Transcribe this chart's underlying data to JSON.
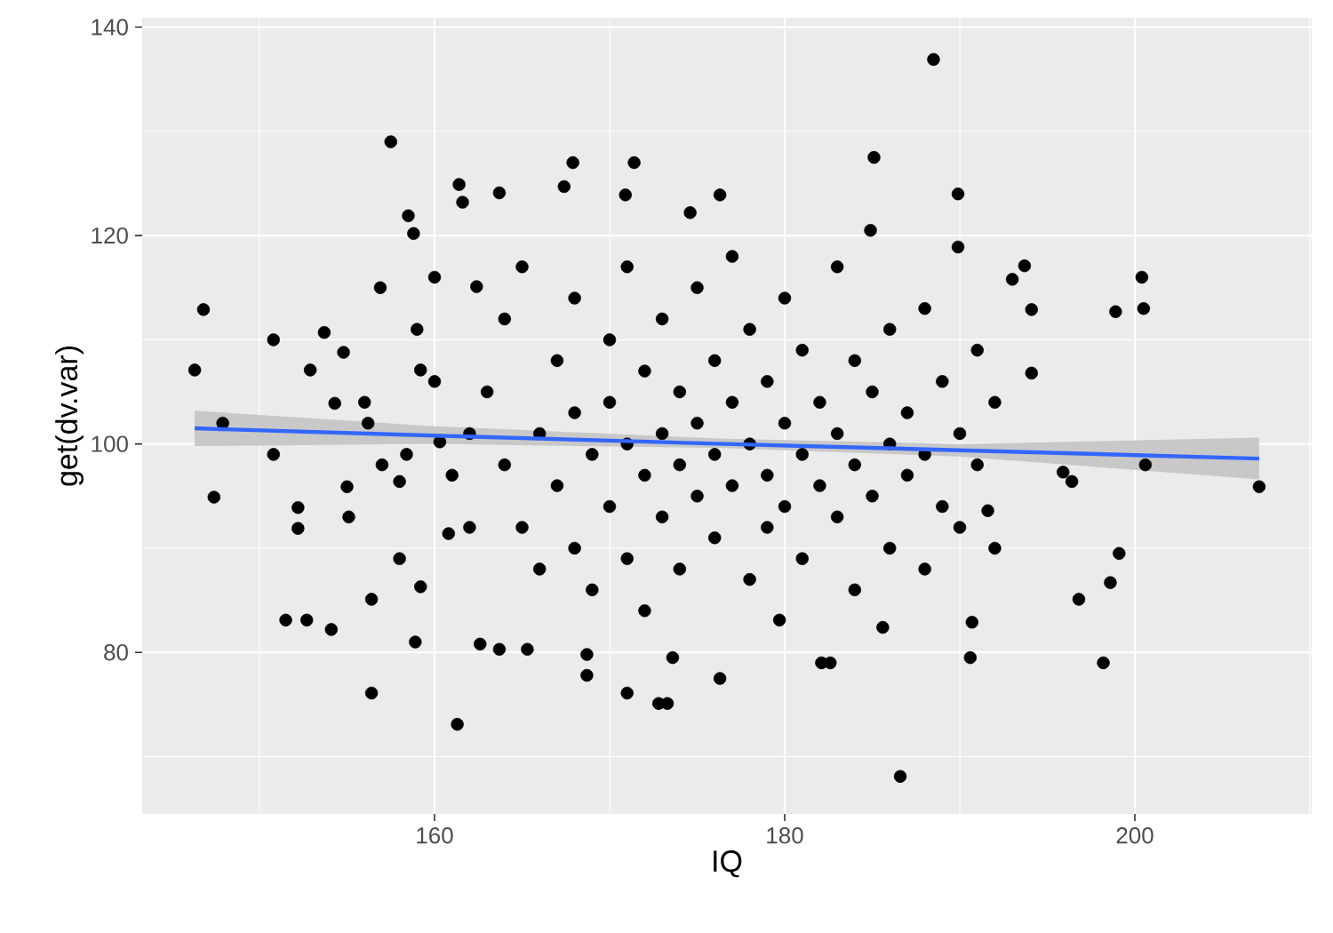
{
  "chart_data": {
    "type": "scatter",
    "xlabel": "IQ",
    "ylabel": "get(dv.var)",
    "xlim": [
      143.3,
      210.1
    ],
    "ylim": [
      64.5,
      140.9
    ],
    "xticks": [
      160,
      180,
      200
    ],
    "yticks": [
      80,
      100,
      120,
      140
    ],
    "grid": true,
    "series": [
      {
        "marker": "circle",
        "color": "#000000",
        "x": [
          146.3,
          146.8,
          147.4,
          147.9,
          150.8,
          150.8,
          151.5,
          152.7,
          152.2,
          152.2,
          152.9,
          153.7,
          154.1,
          154.3,
          154.8,
          155,
          155.1,
          156.2,
          156.4,
          156.4,
          156.9,
          157.5,
          158,
          158.4,
          158.5,
          158.8,
          159.2,
          159.2,
          158.9,
          160.3,
          160.8,
          161.3,
          161.4,
          161.6,
          162.6,
          162.4,
          163.7,
          163.7,
          165.3,
          167.4,
          167.9,
          168.7,
          168.7,
          170.9,
          171,
          171.4,
          172.8,
          173.3,
          173.6,
          174.6,
          176.3,
          176.3,
          179.7,
          182.1,
          182.6,
          186.6,
          185.6,
          184.9,
          185.1,
          188.5,
          189.9,
          189.9,
          193,
          193.7,
          194.1,
          195.9,
          196.8,
          198.6,
          199.1,
          200.5,
          200.4,
          200.6,
          198.9,
          198.2,
          196.4,
          194.1,
          191.6,
          190.6,
          207.1,
          190.7,
          163,
          164,
          164,
          165,
          165,
          166,
          166,
          167,
          167,
          168,
          168,
          168,
          169,
          169,
          170,
          170,
          170,
          171,
          171,
          171,
          172,
          172,
          172,
          173,
          173,
          173,
          174,
          174,
          174,
          175,
          175,
          175,
          176,
          176,
          176,
          177,
          177,
          177,
          178,
          178,
          178,
          179,
          179,
          179,
          180,
          180,
          180,
          181,
          181,
          181,
          182,
          182,
          183,
          183,
          183,
          184,
          184,
          184,
          185,
          185,
          186,
          186,
          186,
          187,
          187,
          188,
          188,
          188,
          189,
          189,
          190,
          190,
          191,
          191,
          192,
          192,
          160,
          161,
          162,
          162,
          159,
          158,
          160,
          156,
          157
        ],
        "values": [
          107.1,
          112.9,
          94.9,
          102,
          110,
          99,
          83.1,
          83.1,
          93.9,
          91.9,
          107.1,
          110.7,
          82.2,
          103.9,
          108.8,
          95.9,
          93,
          102,
          85.1,
          76.1,
          115,
          129,
          96.4,
          99,
          121.9,
          120.2,
          107.1,
          86.3,
          81,
          100.2,
          91.4,
          73.1,
          124.9,
          123.2,
          80.8,
          115.1,
          80.3,
          124.1,
          80.3,
          124.7,
          127,
          77.8,
          79.8,
          123.9,
          76.1,
          127,
          75.1,
          75.1,
          79.5,
          122.2,
          123.9,
          77.5,
          83.1,
          79,
          79,
          68.1,
          82.4,
          120.5,
          127.5,
          136.9,
          118.9,
          124,
          115.8,
          117.1,
          112.9,
          97.3,
          85.1,
          86.7,
          89.5,
          113,
          116,
          98,
          112.7,
          79,
          96.4,
          106.8,
          93.6,
          79.5,
          95.9,
          82.9,
          105,
          98,
          112,
          92,
          117,
          101,
          88,
          108,
          96,
          114,
          103,
          90,
          99,
          86,
          110,
          104,
          94,
          100,
          117,
          89,
          107,
          97,
          84,
          112,
          101,
          93,
          105,
          98,
          88,
          115,
          102,
          95,
          108,
          99,
          91,
          104,
          96,
          118,
          111,
          100,
          87,
          106,
          97,
          92,
          114,
          102,
          94,
          109,
          99,
          89,
          104,
          96,
          117,
          101,
          93,
          108,
          98,
          86,
          105,
          95,
          111,
          100,
          90,
          103,
          97,
          113,
          99,
          88,
          106,
          94,
          101,
          92,
          109,
          98,
          104,
          90,
          106,
          97,
          101,
          92,
          111,
          89,
          116,
          104,
          98
        ]
      },
      {
        "type": "line",
        "color": "#3366ff",
        "x": [
          146.3,
          160,
          176.6,
          190,
          207.1
        ],
        "marker": "none",
        "values": [
          101.5,
          100.8,
          100.0,
          99.4,
          98.6
        ],
        "lower": [
          99.8,
          100.0,
          99.6,
          98.8,
          96.6
        ],
        "upper": [
          103.2,
          101.7,
          100.5,
          100.0,
          100.6
        ]
      }
    ]
  }
}
